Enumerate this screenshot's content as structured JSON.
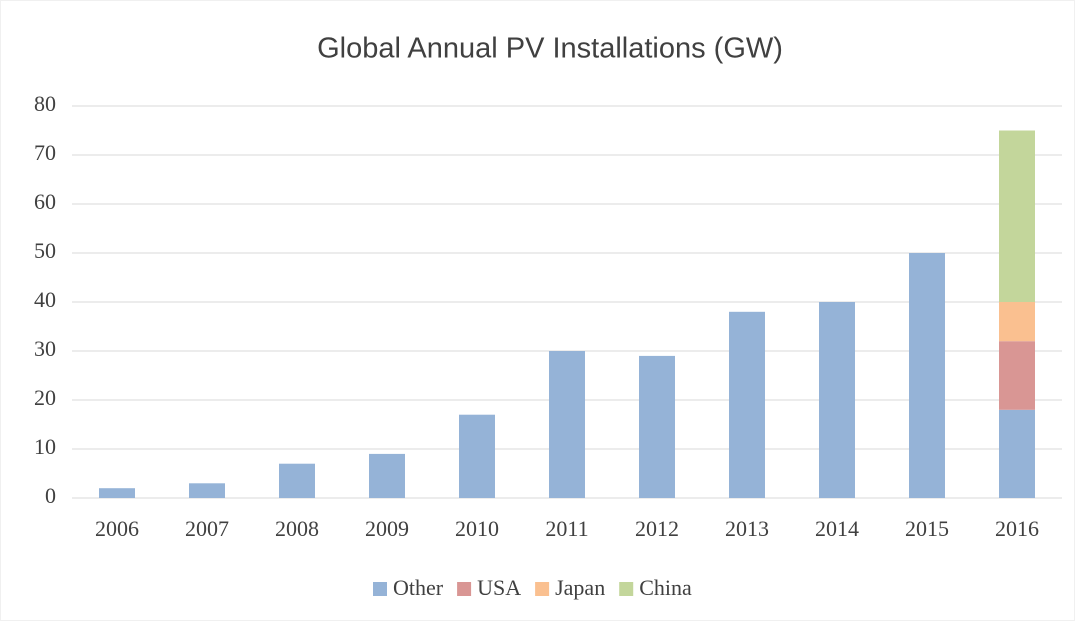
{
  "chart_data": {
    "type": "stacked_bar",
    "title": "Global Annual PV Installations (GW)",
    "categories": [
      "2006",
      "2007",
      "2008",
      "2009",
      "2010",
      "2011",
      "2012",
      "2013",
      "2014",
      "2015",
      "2016"
    ],
    "series": [
      {
        "name": "Other",
        "color": "#95b3d7",
        "values": [
          2,
          3,
          7,
          9,
          17,
          30,
          29,
          38,
          40,
          50,
          18
        ]
      },
      {
        "name": "USA",
        "color": "#d99694",
        "values": [
          null,
          null,
          null,
          null,
          null,
          null,
          null,
          null,
          null,
          null,
          14
        ]
      },
      {
        "name": "Japan",
        "color": "#fac090",
        "values": [
          null,
          null,
          null,
          null,
          null,
          null,
          null,
          null,
          null,
          null,
          8
        ]
      },
      {
        "name": "China",
        "color": "#c3d69b",
        "values": [
          null,
          null,
          null,
          null,
          null,
          null,
          null,
          null,
          null,
          null,
          35
        ]
      }
    ],
    "ylim": [
      0,
      80
    ],
    "yticks": [
      0,
      10,
      20,
      30,
      40,
      50,
      60,
      70,
      80
    ],
    "grid": true,
    "legend": "bottom"
  }
}
